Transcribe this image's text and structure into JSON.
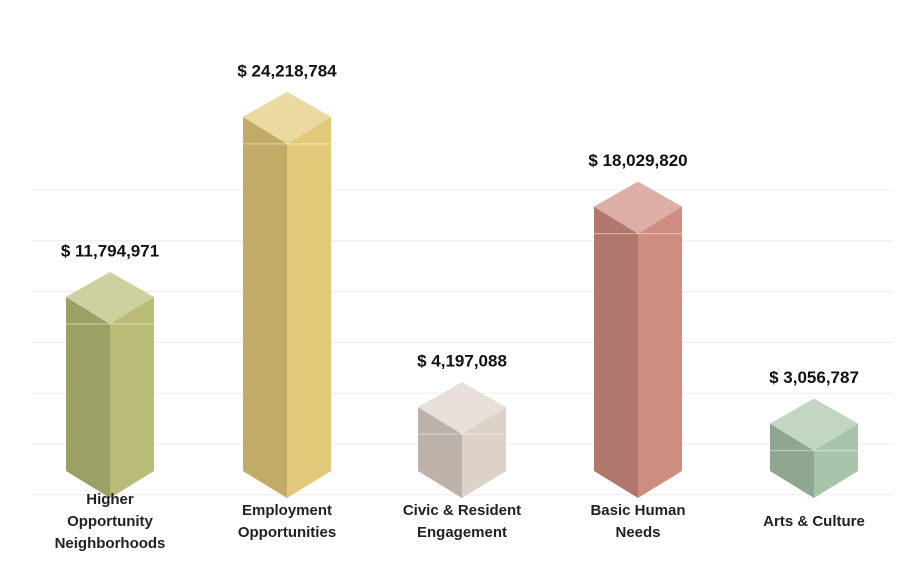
{
  "chart_data": {
    "type": "bar3d",
    "categories": [
      [
        "Higher",
        "Opportunity",
        "Neighborhoods"
      ],
      [
        "Employment",
        "Opportunities"
      ],
      [
        "Civic & Resident",
        "Engagement"
      ],
      [
        "Basic Human",
        "Needs"
      ],
      [
        "Arts & Culture"
      ]
    ],
    "values": [
      11794971,
      24218784,
      4197088,
      18029820,
      3056787
    ],
    "value_labels": [
      "$ 11,794,971",
      "$ 24,218,784",
      "$ 4,197,088",
      "$ 18,029,820",
      "$ 3,056,787"
    ],
    "colors": [
      "#b8bc76",
      "#e2c97a",
      "#ddd2c8",
      "#cf8c80",
      "#a8c4aa"
    ],
    "ylim": [
      0,
      30000000
    ],
    "grid": true
  }
}
